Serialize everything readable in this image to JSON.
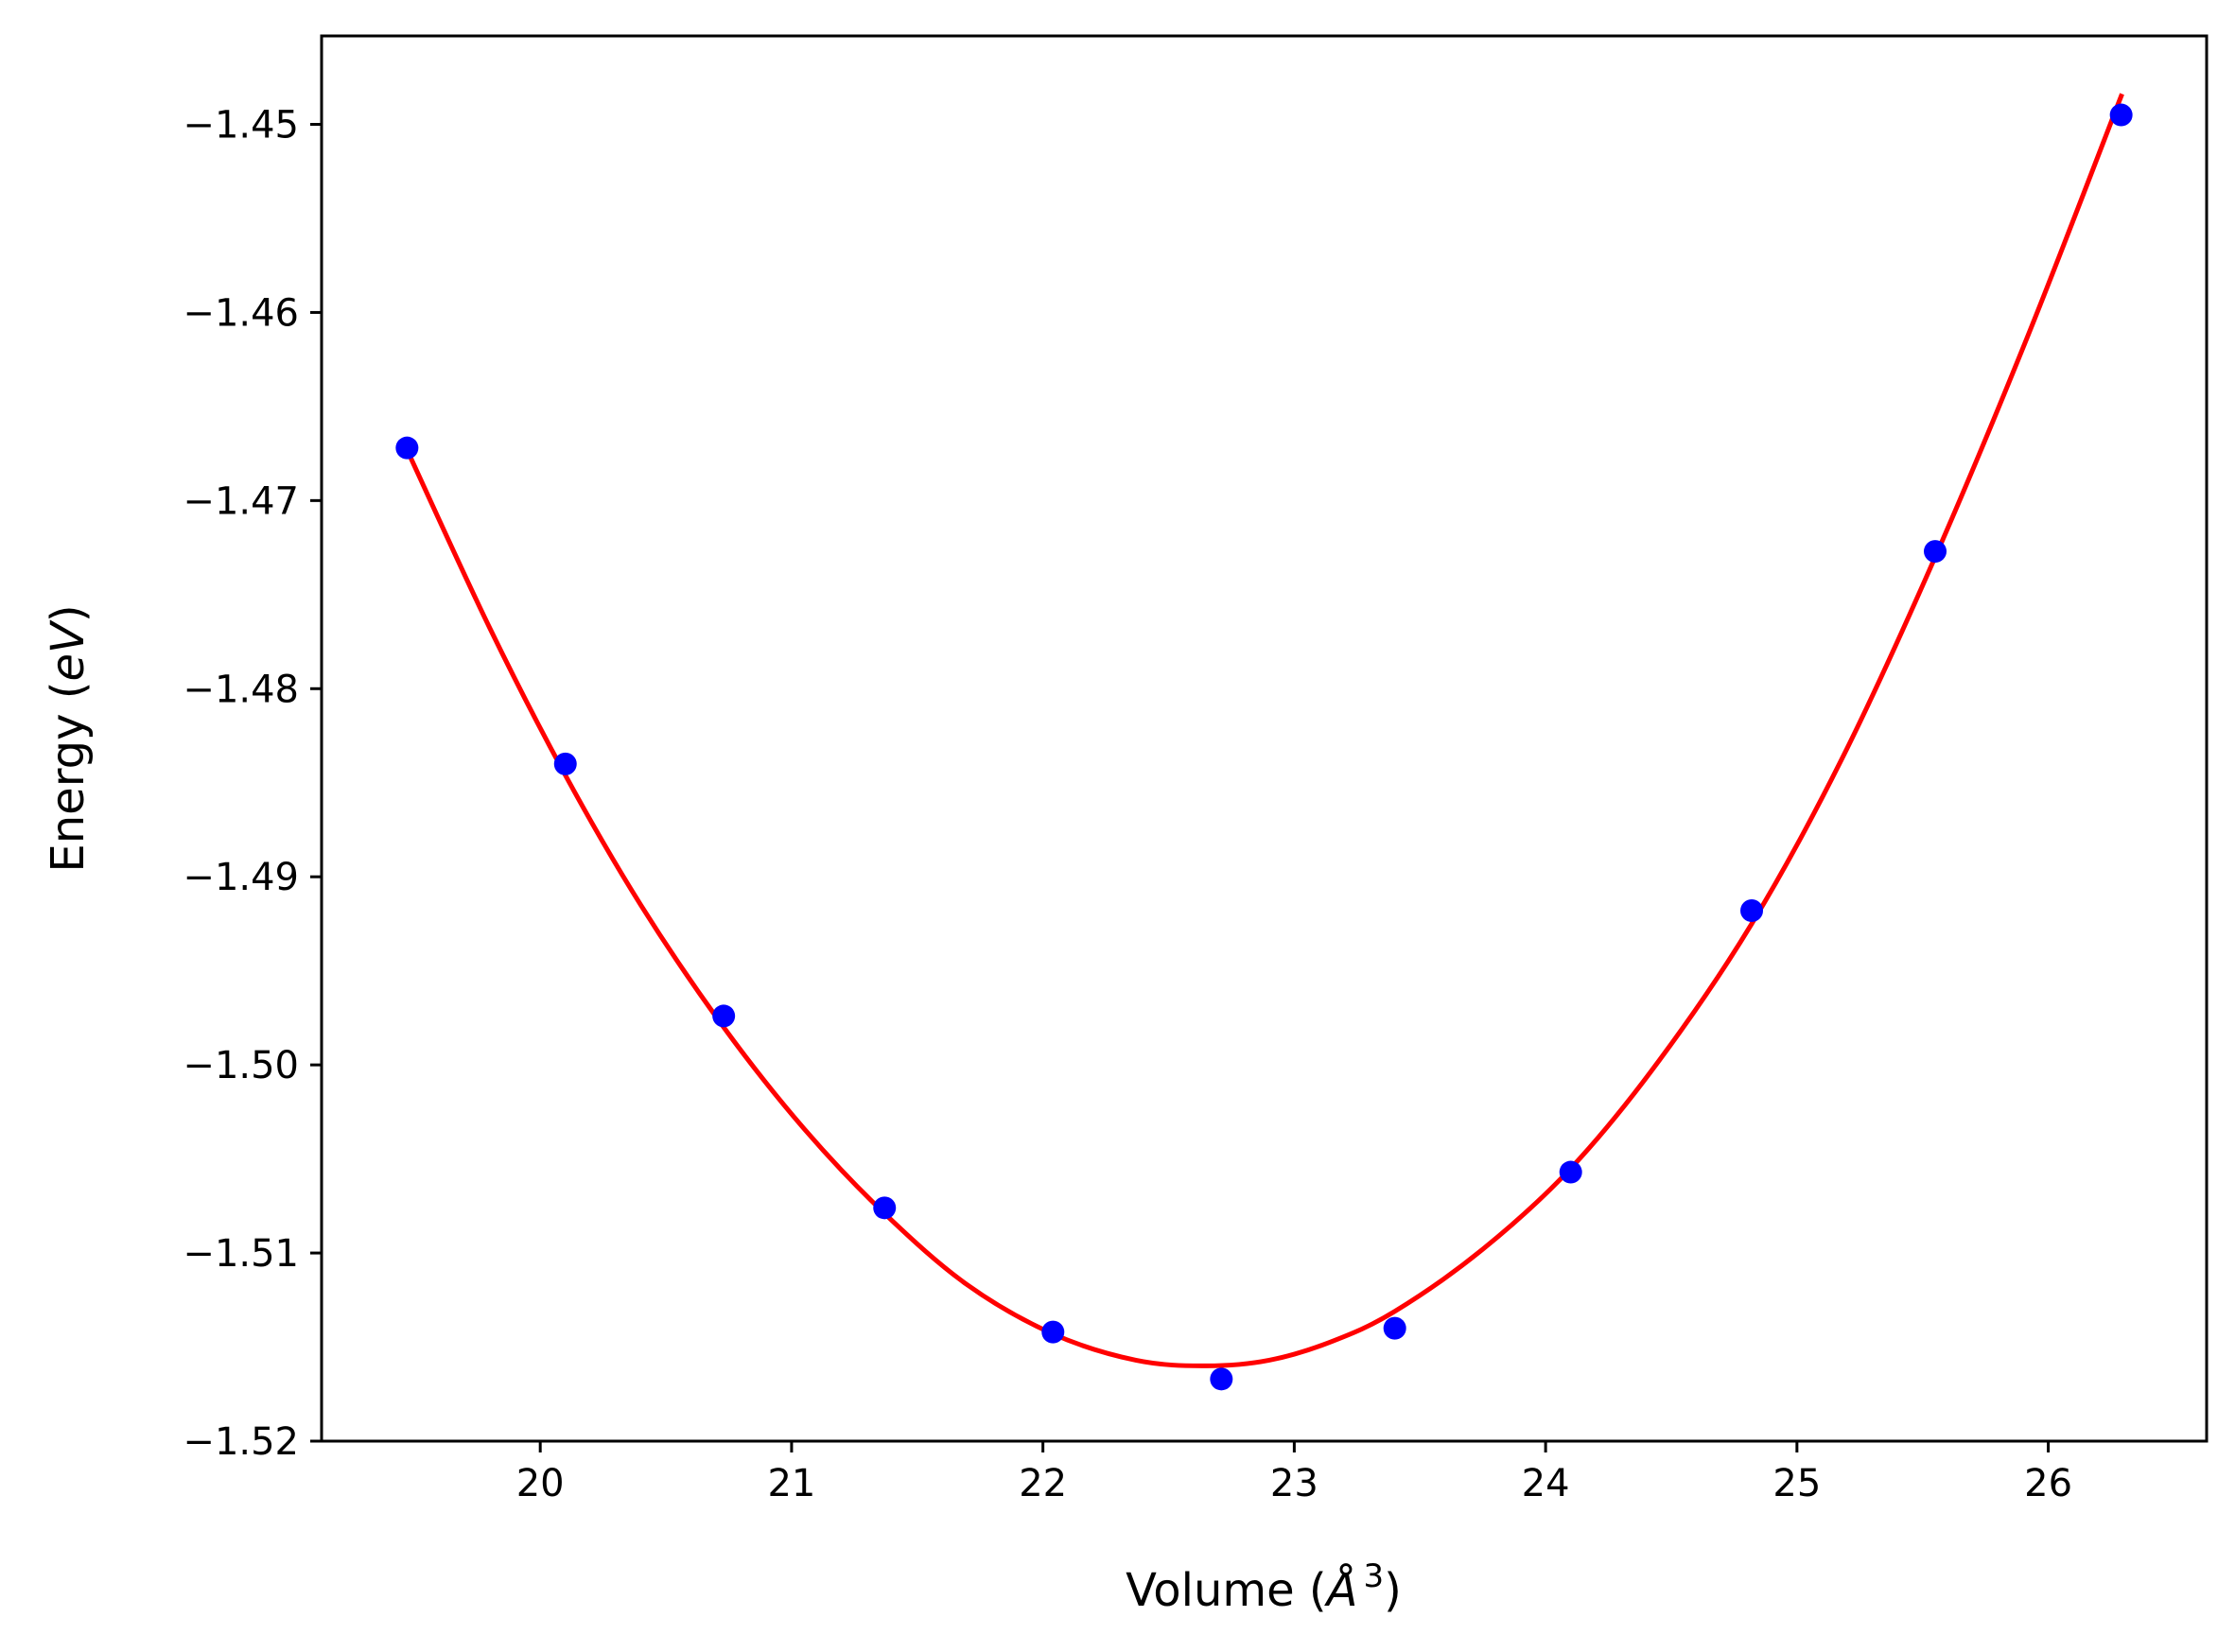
{
  "chart_data": {
    "type": "scatter",
    "title": "",
    "xlabel": {
      "text": "Volume (",
      "symbol": "Å",
      "superscript": "3",
      "suffix": ")"
    },
    "ylabel": {
      "text": "Energy (",
      "symbol": "eV",
      "suffix": ")"
    },
    "xlim": [
      19.13,
      26.63
    ],
    "ylim": [
      -1.52,
      -1.4453
    ],
    "x_ticks": [
      {
        "value": 20,
        "label": "20"
      },
      {
        "value": 21,
        "label": "21"
      },
      {
        "value": 22,
        "label": "22"
      },
      {
        "value": 23,
        "label": "23"
      },
      {
        "value": 24,
        "label": "24"
      },
      {
        "value": 25,
        "label": "25"
      },
      {
        "value": 26,
        "label": "26"
      }
    ],
    "y_ticks": [
      {
        "value": -1.45,
        "label": "−1.45"
      },
      {
        "value": -1.46,
        "label": "−1.46"
      },
      {
        "value": -1.47,
        "label": "−1.47"
      },
      {
        "value": -1.48,
        "label": "−1.48"
      },
      {
        "value": -1.49,
        "label": "−1.49"
      },
      {
        "value": -1.5,
        "label": "−1.50"
      },
      {
        "value": -1.51,
        "label": "−1.51"
      },
      {
        "value": -1.52,
        "label": "−1.52"
      }
    ],
    "grid": false,
    "legend": "none",
    "series": [
      {
        "kind": "points",
        "color": "#0000ff",
        "x": [
          19.47,
          20.1,
          20.73,
          21.37,
          22.04,
          22.71,
          23.4,
          24.1,
          24.82,
          25.55,
          26.29
        ],
        "y": [
          -1.4672,
          -1.484,
          -1.4974,
          -1.5076,
          -1.5142,
          -1.5167,
          -1.514,
          -1.5057,
          -1.4918,
          -1.4727,
          -1.4495
        ]
      },
      {
        "kind": "fit-curve",
        "color": "#ff0000",
        "x": [
          19.47,
          19.8,
          20.1,
          20.4,
          20.73,
          21.05,
          21.37,
          21.7,
          22.04,
          22.37,
          22.65,
          22.9,
          23.15,
          23.4,
          23.75,
          24.1,
          24.45,
          24.82,
          25.18,
          25.55,
          25.92,
          26.29
        ],
        "y": [
          -1.4673,
          -1.4768,
          -1.4846,
          -1.4915,
          -1.498,
          -1.5034,
          -1.5079,
          -1.5117,
          -1.5143,
          -1.5157,
          -1.516,
          -1.5157,
          -1.5147,
          -1.5131,
          -1.5098,
          -1.5055,
          -1.4998,
          -1.4925,
          -1.4837,
          -1.473,
          -1.4612,
          -1.4485
        ]
      }
    ]
  }
}
